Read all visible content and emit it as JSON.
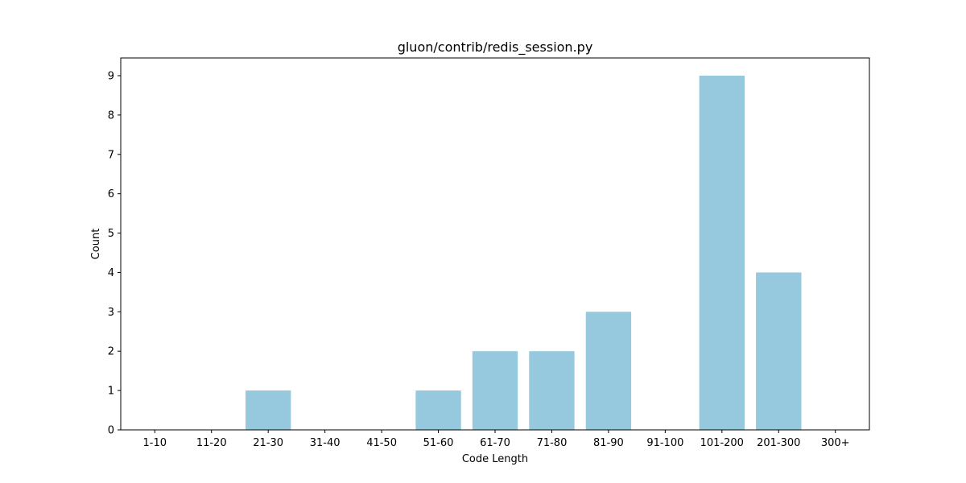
{
  "chart_data": {
    "type": "bar",
    "title": "gluon/contrib/redis_session.py",
    "xlabel": "Code Length",
    "ylabel": "Count",
    "categories": [
      "1-10",
      "11-20",
      "21-30",
      "31-40",
      "41-50",
      "51-60",
      "61-70",
      "71-80",
      "81-90",
      "91-100",
      "101-200",
      "201-300",
      "300+"
    ],
    "values": [
      0,
      0,
      1,
      0,
      0,
      1,
      2,
      2,
      3,
      0,
      9,
      4,
      0
    ],
    "ylim": [
      0,
      9.45
    ],
    "yticks": [
      0,
      1,
      2,
      3,
      4,
      5,
      6,
      7,
      8,
      9
    ],
    "bar_color": "#96c9dd",
    "grid": false,
    "legend": "none"
  }
}
